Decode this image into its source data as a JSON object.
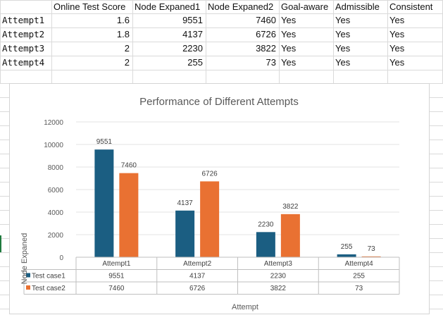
{
  "sheet": {
    "headers": [
      "Online Test Score",
      "Node Expaned1",
      "Node Expaned2",
      "Goal-aware",
      "Admissible",
      "Consistent"
    ],
    "rows": [
      {
        "name": "Attempt1",
        "score": "1.6",
        "n1": "9551",
        "n2": "7460",
        "goal": "Yes",
        "adm": "Yes",
        "con": "Yes"
      },
      {
        "name": "Attempt2",
        "score": "1.8",
        "n1": "4137",
        "n2": "6726",
        "goal": "Yes",
        "adm": "Yes",
        "con": "Yes"
      },
      {
        "name": "Attempt3",
        "score": "2",
        "n1": "2230",
        "n2": "3822",
        "goal": "Yes",
        "adm": "Yes",
        "con": "Yes"
      },
      {
        "name": "Attempt4",
        "score": "2",
        "n1": "255",
        "n2": "73",
        "goal": "Yes",
        "adm": "Yes",
        "con": "Yes"
      }
    ]
  },
  "chart_data": {
    "type": "bar",
    "title": "Performance of Different Attempts",
    "xlabel": "Attempt",
    "ylabel": "Node Expaned",
    "categories": [
      "Attempt1",
      "Attempt2",
      "Attempt3",
      "Attempt4"
    ],
    "series": [
      {
        "name": "Test case1",
        "values": [
          9551,
          4137,
          2230,
          255
        ],
        "color": "#1b5e82"
      },
      {
        "name": "Test case2",
        "values": [
          7460,
          6726,
          3822,
          73
        ],
        "color": "#e97132"
      }
    ],
    "ylim": [
      0,
      12000
    ],
    "yticks": [
      0,
      2000,
      4000,
      6000,
      8000,
      10000,
      12000
    ],
    "grid": true,
    "data_table": true
  }
}
